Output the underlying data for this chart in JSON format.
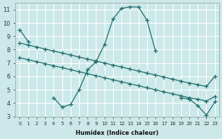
{
  "xlabel": "Humidex (Indice chaleur)",
  "background_color": "#cce8e8",
  "grid_color": "#ffffff",
  "line_color": "#1a6b6b",
  "curve_segments": [
    {
      "x": [
        0,
        1
      ],
      "y": [
        9.5,
        8.6
      ]
    },
    {
      "x": [
        2,
        3,
        4,
        5,
        6,
        7,
        8,
        9,
        10,
        11,
        12,
        13,
        14,
        15,
        16
      ],
      "y": [
        null,
        null,
        4.4,
        3.7,
        3.9,
        5.0,
        6.5,
        7.1,
        8.4,
        10.3,
        11.1,
        11.2,
        11.2,
        10.2,
        7.9
      ]
    },
    {
      "x": [
        19,
        20,
        21,
        22,
        23
      ],
      "y": [
        4.4,
        4.3,
        3.8,
        3.1,
        4.1
      ]
    }
  ],
  "upper_line": {
    "x": [
      0,
      1,
      2,
      3,
      4,
      5,
      6,
      7,
      8,
      9,
      10,
      11,
      12,
      13,
      14,
      15,
      16,
      17,
      18,
      19,
      20,
      21,
      22,
      23
    ],
    "y": [
      8.5,
      8.35,
      8.2,
      8.05,
      7.9,
      7.75,
      7.6,
      7.45,
      7.3,
      7.15,
      7.0,
      6.85,
      6.7,
      6.55,
      6.4,
      6.25,
      6.1,
      5.95,
      5.8,
      5.65,
      5.5,
      5.38,
      5.25,
      6.0
    ]
  },
  "lower_line": {
    "x": [
      0,
      1,
      2,
      3,
      4,
      5,
      6,
      7,
      8,
      9,
      10,
      11,
      12,
      13,
      14,
      15,
      16,
      17,
      18,
      19,
      20,
      21,
      22,
      23
    ],
    "y": [
      7.4,
      7.25,
      7.1,
      6.95,
      6.8,
      6.65,
      6.5,
      6.35,
      6.2,
      6.05,
      5.9,
      5.75,
      5.6,
      5.45,
      5.3,
      5.15,
      5.0,
      4.85,
      4.7,
      4.55,
      4.4,
      4.3,
      4.15,
      4.5
    ]
  },
  "ylim": [
    3,
    11.5
  ],
  "xlim": [
    -0.5,
    23.5
  ],
  "yticks": [
    3,
    4,
    5,
    6,
    7,
    8,
    9,
    10,
    11
  ],
  "xticks": [
    0,
    1,
    2,
    3,
    4,
    5,
    6,
    7,
    8,
    9,
    10,
    11,
    12,
    13,
    14,
    15,
    16,
    17,
    18,
    19,
    20,
    21,
    22,
    23
  ],
  "xlabel_fontsize": 6,
  "tick_fontsize_x": 5,
  "tick_fontsize_y": 6
}
